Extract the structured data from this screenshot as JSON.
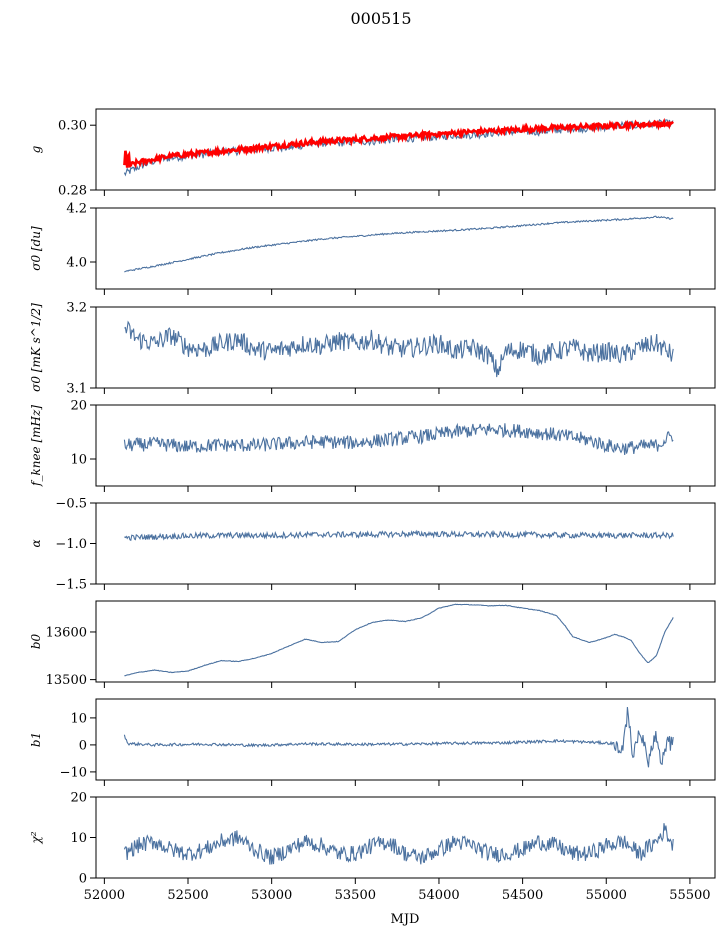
{
  "figure": {
    "title": "000515",
    "xlabel": "MJD",
    "colors": {
      "line": "#4c72a0",
      "fit": "#ff0000",
      "axis": "#000000"
    }
  },
  "chart_data": [
    {
      "type": "line",
      "id": "g",
      "ylabel": "g",
      "xlim": [
        51950,
        55650
      ],
      "ylim": [
        0.28,
        0.305
      ],
      "yticks": [
        0.28,
        0.3
      ],
      "ytick_labels": [
        "0.28",
        "0.30"
      ],
      "series": [
        {
          "name": "g",
          "color": "#4c72a0",
          "x": [
            52120,
            52200,
            52300,
            52400,
            52500,
            52600,
            52700,
            52800,
            52900,
            53000,
            53100,
            53200,
            53300,
            53400,
            53500,
            53600,
            53700,
            53800,
            53900,
            54000,
            54100,
            54200,
            54300,
            54400,
            54500,
            54600,
            54700,
            54800,
            54900,
            55000,
            55100,
            55200,
            55300,
            55400
          ],
          "y": [
            0.285,
            0.287,
            0.289,
            0.29,
            0.2905,
            0.291,
            0.292,
            0.292,
            0.2925,
            0.293,
            0.293,
            0.294,
            0.2945,
            0.2945,
            0.295,
            0.295,
            0.2955,
            0.296,
            0.296,
            0.2965,
            0.297,
            0.297,
            0.2975,
            0.298,
            0.298,
            0.298,
            0.2985,
            0.299,
            0.299,
            0.2995,
            0.3,
            0.3,
            0.3005,
            0.3005
          ]
        },
        {
          "name": "fit",
          "color": "#ff0000",
          "x": [
            52120,
            52200,
            52300,
            52400,
            52500,
            52600,
            52700,
            52800,
            52900,
            53000,
            53100,
            53200,
            53300,
            53400,
            53500,
            53600,
            53700,
            53800,
            53900,
            54000,
            54100,
            54200,
            54300,
            54400,
            54500,
            54600,
            54700,
            54800,
            54900,
            55000,
            55100,
            55200,
            55300,
            55400
          ],
          "y": [
            0.287,
            0.2885,
            0.2895,
            0.2905,
            0.291,
            0.2915,
            0.292,
            0.2925,
            0.293,
            0.2935,
            0.294,
            0.2945,
            0.295,
            0.2953,
            0.2956,
            0.296,
            0.2963,
            0.2966,
            0.297,
            0.2973,
            0.2976,
            0.298,
            0.2982,
            0.2984,
            0.2987,
            0.299,
            0.2992,
            0.2994,
            0.2996,
            0.2998,
            0.3,
            0.3002,
            0.3004,
            0.3003
          ]
        }
      ]
    },
    {
      "type": "line",
      "id": "sigma0_du",
      "ylabel": "σ0 [du]",
      "xlim": [
        51950,
        55650
      ],
      "ylim": [
        3.9,
        4.2
      ],
      "yticks": [
        4.0,
        4.2
      ],
      "ytick_labels": [
        "4.0",
        "4.2"
      ],
      "series": [
        {
          "name": "sigma0",
          "color": "#4c72a0",
          "x": [
            52120,
            52300,
            52500,
            52700,
            52900,
            53100,
            53300,
            53500,
            53700,
            53900,
            54100,
            54300,
            54500,
            54700,
            54900,
            55100,
            55300,
            55400
          ],
          "y": [
            3.965,
            3.985,
            4.01,
            4.035,
            4.055,
            4.07,
            4.085,
            4.095,
            4.105,
            4.112,
            4.118,
            4.125,
            4.135,
            4.145,
            4.152,
            4.158,
            4.167,
            4.16
          ]
        }
      ]
    },
    {
      "type": "line",
      "id": "sigma0_mk",
      "ylabel": "σ0 [mK s^1/2]",
      "xlim": [
        51950,
        55650
      ],
      "ylim": [
        3.1,
        3.2
      ],
      "yticks": [
        3.1,
        3.2
      ],
      "ytick_labels": [
        "3.1",
        "3.2"
      ],
      "series": [
        {
          "name": "sigma0_mK",
          "color": "#4c72a0",
          "x": [
            52120,
            52200,
            52300,
            52400,
            52500,
            52600,
            52700,
            52800,
            52900,
            53000,
            53100,
            53200,
            53300,
            53400,
            53500,
            53600,
            53700,
            53800,
            53900,
            54000,
            54100,
            54200,
            54300,
            54350,
            54400,
            54500,
            54600,
            54700,
            54800,
            54900,
            55000,
            55100,
            55200,
            55300,
            55400
          ],
          "y": [
            3.175,
            3.16,
            3.155,
            3.165,
            3.15,
            3.148,
            3.155,
            3.16,
            3.148,
            3.145,
            3.15,
            3.155,
            3.152,
            3.158,
            3.155,
            3.16,
            3.15,
            3.148,
            3.152,
            3.155,
            3.145,
            3.15,
            3.14,
            3.12,
            3.145,
            3.148,
            3.14,
            3.145,
            3.15,
            3.142,
            3.145,
            3.14,
            3.15,
            3.155,
            3.14
          ]
        }
      ]
    },
    {
      "type": "line",
      "id": "fknee",
      "ylabel": "f_knee [mHz]",
      "xlim": [
        51950,
        55650
      ],
      "ylim": [
        5,
        20
      ],
      "yticks": [
        10,
        20
      ],
      "ytick_labels": [
        "10",
        "20"
      ],
      "series": [
        {
          "name": "fknee",
          "color": "#4c72a0",
          "x": [
            52120,
            52300,
            52500,
            52700,
            52900,
            53100,
            53300,
            53500,
            53700,
            53900,
            54100,
            54300,
            54500,
            54700,
            54900,
            55000,
            55100,
            55200,
            55300,
            55400
          ],
          "y": [
            12.5,
            12.8,
            12.3,
            12.6,
            12.5,
            12.9,
            13.2,
            13.0,
            13.6,
            14.2,
            15.0,
            15.5,
            15.2,
            14.5,
            13.5,
            12.5,
            12.0,
            12.3,
            12.5,
            14.5
          ]
        }
      ]
    },
    {
      "type": "line",
      "id": "alpha",
      "ylabel": "α",
      "xlim": [
        51950,
        55650
      ],
      "ylim": [
        -1.5,
        -0.5
      ],
      "yticks": [
        -1.5,
        -1.0,
        -0.5
      ],
      "ytick_labels": [
        "−1.5",
        "−1.0",
        "−0.5"
      ],
      "series": [
        {
          "name": "alpha",
          "color": "#4c72a0",
          "x": [
            52120,
            52400,
            52700,
            53000,
            53300,
            53600,
            53900,
            54200,
            54500,
            54800,
            55100,
            55400
          ],
          "y": [
            -0.93,
            -0.91,
            -0.9,
            -0.9,
            -0.89,
            -0.89,
            -0.88,
            -0.89,
            -0.89,
            -0.9,
            -0.9,
            -0.9
          ]
        }
      ]
    },
    {
      "type": "line",
      "id": "b0",
      "ylabel": "b0",
      "xlim": [
        51950,
        55650
      ],
      "ylim": [
        13495,
        13665
      ],
      "yticks": [
        13500,
        13600
      ],
      "ytick_labels": [
        "13500",
        "13600"
      ],
      "series": [
        {
          "name": "b0",
          "color": "#4c72a0",
          "x": [
            52120,
            52200,
            52300,
            52400,
            52500,
            52600,
            52700,
            52800,
            52900,
            53000,
            53100,
            53200,
            53300,
            53400,
            53500,
            53600,
            53700,
            53800,
            53900,
            54000,
            54100,
            54200,
            54300,
            54400,
            54500,
            54600,
            54700,
            54750,
            54800,
            54900,
            55000,
            55050,
            55100,
            55150,
            55200,
            55250,
            55300,
            55350,
            55400
          ],
          "y": [
            13508,
            13515,
            13520,
            13515,
            13518,
            13530,
            13540,
            13538,
            13545,
            13555,
            13570,
            13585,
            13578,
            13580,
            13605,
            13620,
            13625,
            13622,
            13630,
            13650,
            13658,
            13657,
            13655,
            13656,
            13650,
            13645,
            13635,
            13615,
            13590,
            13578,
            13588,
            13595,
            13590,
            13582,
            13555,
            13535,
            13550,
            13600,
            13630
          ]
        }
      ]
    },
    {
      "type": "line",
      "id": "b1",
      "ylabel": "b1",
      "xlim": [
        51950,
        55650
      ],
      "ylim": [
        -13,
        17
      ],
      "yticks": [
        -10,
        0,
        10
      ],
      "ytick_labels": [
        "−10",
        "0",
        "10"
      ],
      "series": [
        {
          "name": "b1",
          "color": "#4c72a0",
          "x": [
            52120,
            52140,
            52300,
            52600,
            52900,
            53200,
            53500,
            53800,
            54100,
            54400,
            54700,
            54900,
            55050,
            55100,
            55130,
            55160,
            55200,
            55250,
            55300,
            55330,
            55360,
            55400
          ],
          "y": [
            3.5,
            0.5,
            0.0,
            0.3,
            -0.2,
            0.4,
            0.2,
            0.3,
            0.6,
            0.8,
            1.5,
            1.0,
            0.5,
            -3.0,
            14.0,
            -5.0,
            6.0,
            -6.0,
            4.0,
            -9.0,
            1.0,
            0.0
          ]
        }
      ]
    },
    {
      "type": "line",
      "id": "chi2",
      "ylabel": "χ²",
      "xlim": [
        51950,
        55650
      ],
      "ylim": [
        0,
        20
      ],
      "yticks": [
        0,
        10,
        20
      ],
      "ytick_labels": [
        "0",
        "10",
        "20"
      ],
      "xticks": [
        52000,
        52500,
        53000,
        53500,
        54000,
        54500,
        55000,
        55500
      ],
      "xtick_labels": [
        "52000",
        "52500",
        "53000",
        "53500",
        "54000",
        "54500",
        "55000",
        "55500"
      ],
      "series": [
        {
          "name": "chi2",
          "color": "#4c72a0",
          "x": [
            52120,
            52200,
            52300,
            52400,
            52500,
            52600,
            52700,
            52800,
            52900,
            53000,
            53100,
            53200,
            53300,
            53400,
            53500,
            53600,
            53700,
            53800,
            53900,
            54000,
            54100,
            54200,
            54300,
            54400,
            54500,
            54600,
            54700,
            54800,
            54900,
            55000,
            55100,
            55200,
            55300,
            55350,
            55400
          ],
          "y": [
            6,
            8,
            9,
            7,
            6,
            7,
            9,
            10,
            7,
            5,
            7,
            9,
            8,
            6,
            6,
            8,
            9,
            6,
            5,
            7,
            9,
            8,
            6,
            6,
            7,
            9,
            8,
            6,
            6,
            8,
            9,
            6,
            9,
            12,
            8
          ]
        }
      ]
    }
  ]
}
